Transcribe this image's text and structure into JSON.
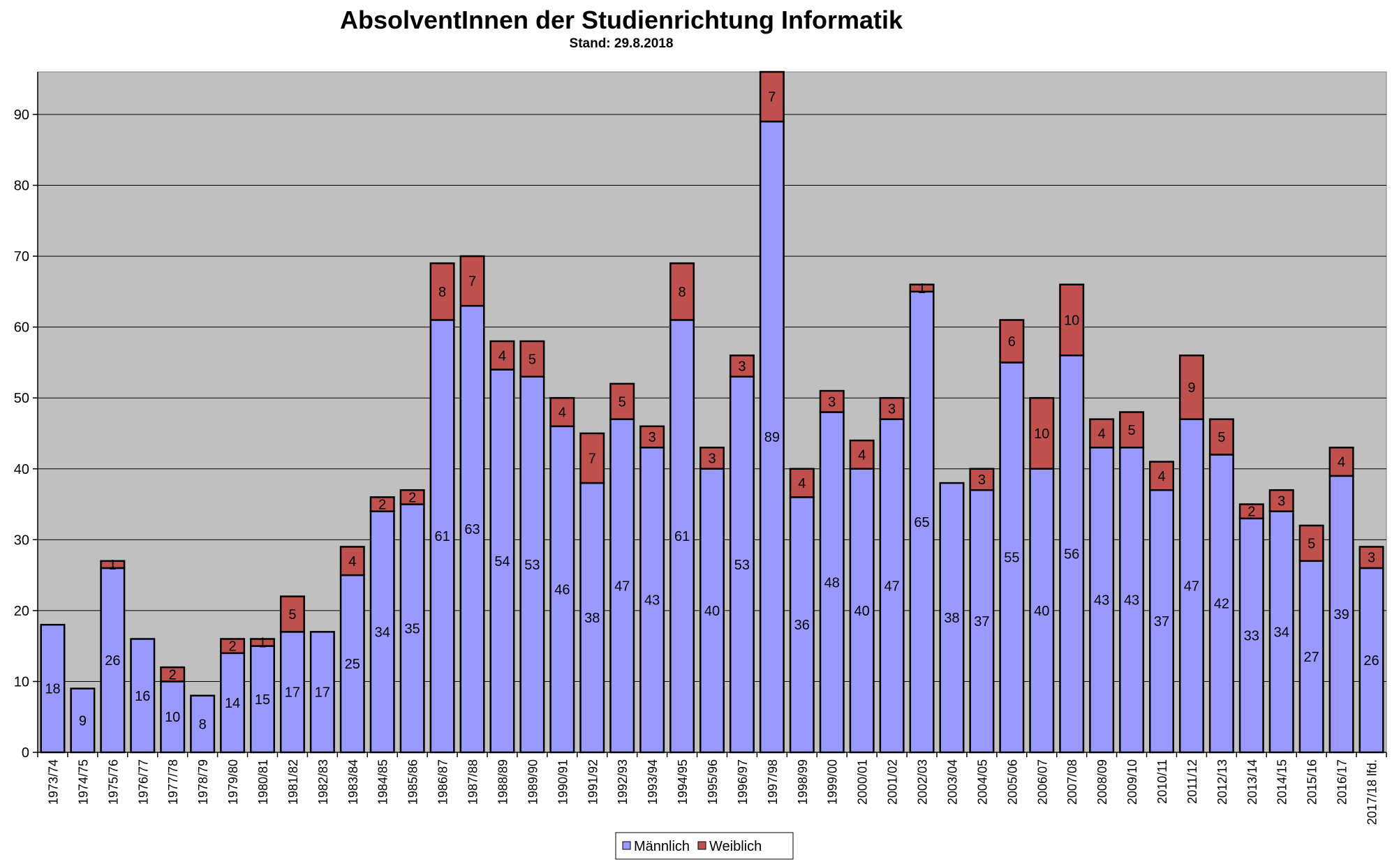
{
  "chart_data": {
    "type": "bar",
    "stacked": true,
    "title": "AbsolventInnen der Studienrichtung Informatik",
    "subtitle": "Stand: 29.8.2018",
    "xlabel": "",
    "ylabel": "",
    "ylim": [
      0,
      96
    ],
    "yticks": [
      0,
      10,
      20,
      30,
      40,
      50,
      60,
      70,
      80,
      90
    ],
    "grid": true,
    "legend_position": "bottom",
    "categories": [
      "1973/74",
      "1974/75",
      "1975/76",
      "1976/77",
      "1977/78",
      "1978/79",
      "1979/80",
      "1980/81",
      "1981/82",
      "1982/83",
      "1983/84",
      "1984/85",
      "1985/86",
      "1986/87",
      "1987/88",
      "1988/89",
      "1989/90",
      "1990/91",
      "1991/92",
      "1992/93",
      "1993/94",
      "1994/95",
      "1995/96",
      "1996/97",
      "1997/98",
      "1998/99",
      "1999/00",
      "2000/01",
      "2001/02",
      "2002/03",
      "2003/04",
      "2004/05",
      "2005/06",
      "2006/07",
      "2007/08",
      "2008/09",
      "2009/10",
      "2010/11",
      "2011/12",
      "2012/13",
      "2013/14",
      "2014/15",
      "2015/16",
      "2016/17",
      "2017/18 lfd."
    ],
    "series": [
      {
        "name": "Männlich",
        "color": "#9999FF",
        "values": [
          18,
          9,
          26,
          16,
          10,
          8,
          14,
          15,
          17,
          17,
          25,
          34,
          35,
          61,
          63,
          54,
          53,
          46,
          38,
          47,
          43,
          61,
          40,
          53,
          89,
          36,
          48,
          40,
          47,
          65,
          38,
          37,
          55,
          40,
          56,
          43,
          43,
          37,
          47,
          42,
          33,
          34,
          27,
          39,
          26
        ]
      },
      {
        "name": "Weiblich",
        "color": "#C0504D",
        "values": [
          0,
          0,
          1,
          0,
          2,
          0,
          2,
          1,
          5,
          0,
          4,
          2,
          2,
          8,
          7,
          4,
          5,
          4,
          7,
          5,
          3,
          8,
          3,
          3,
          7,
          4,
          3,
          4,
          3,
          1,
          0,
          3,
          6,
          10,
          10,
          4,
          5,
          4,
          9,
          5,
          2,
          3,
          5,
          4,
          3
        ]
      }
    ],
    "plot_background": "#C0C0C0"
  }
}
